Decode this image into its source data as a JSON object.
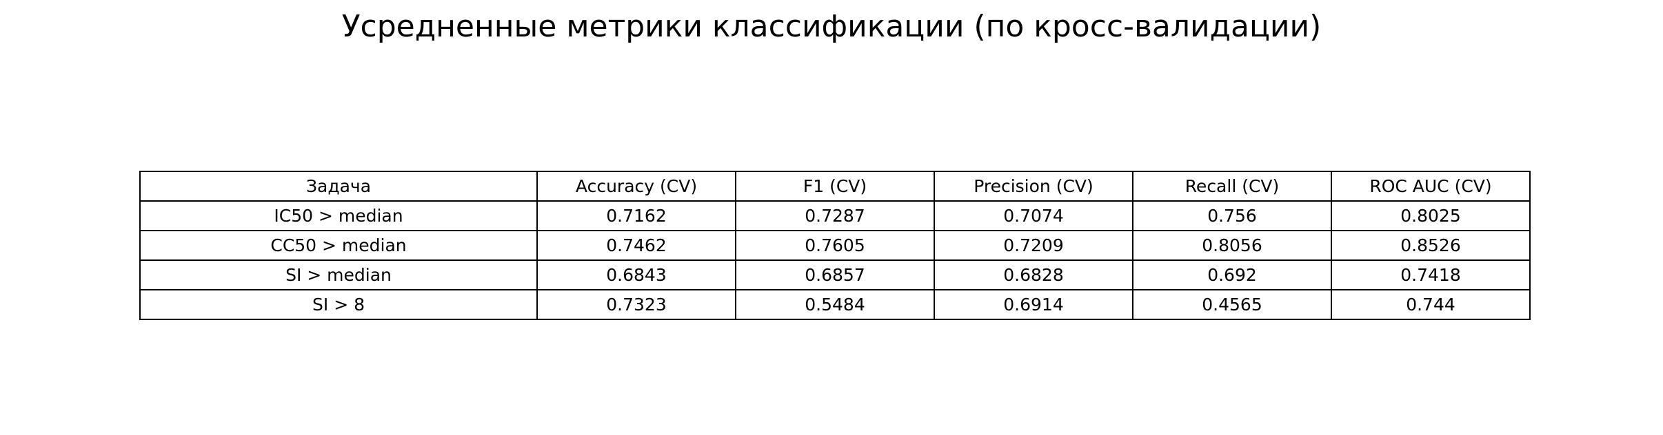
{
  "chart_data": {
    "type": "table",
    "title": "Усредненные метрики классификации (по кросс-валидации)",
    "columns": [
      "Задача",
      "Accuracy (CV)",
      "F1 (CV)",
      "Precision (CV)",
      "Recall (CV)",
      "ROC AUC (CV)"
    ],
    "rows": [
      [
        "IC50 > median",
        "0.7162",
        "0.7287",
        "0.7074",
        "0.756",
        "0.8025"
      ],
      [
        "CC50 > median",
        "0.7462",
        "0.7605",
        "0.7209",
        "0.8056",
        "0.8526"
      ],
      [
        "SI > median",
        "0.6843",
        "0.6857",
        "0.6828",
        "0.692",
        "0.7418"
      ],
      [
        "SI > 8",
        "0.7323",
        "0.5484",
        "0.6914",
        "0.4565",
        "0.744"
      ]
    ]
  }
}
